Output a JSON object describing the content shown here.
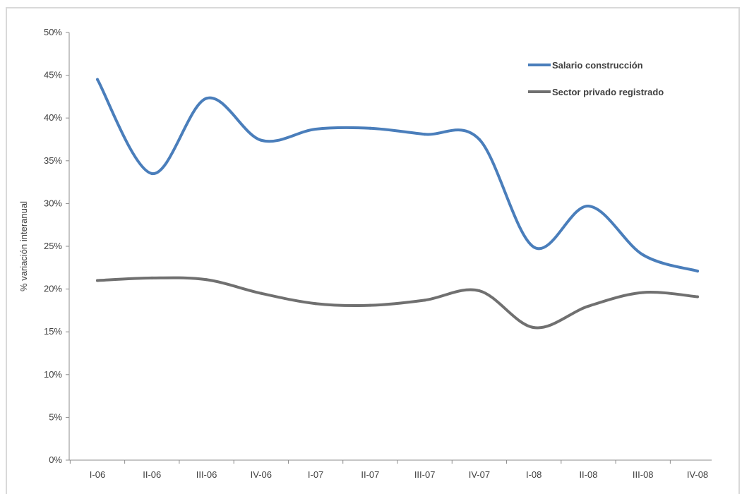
{
  "chart_data": {
    "type": "line",
    "categories": [
      "I-06",
      "II-06",
      "III-06",
      "IV-06",
      "I-07",
      "II-07",
      "III-07",
      "IV-07",
      "I-08",
      "II-08",
      "III-08",
      "IV-08"
    ],
    "series": [
      {
        "name": "Salario construcción",
        "color": "#4a7ebb",
        "values": [
          44.5,
          33.5,
          42.3,
          37.4,
          38.7,
          38.8,
          38.1,
          37.5,
          24.9,
          29.7,
          24.0,
          22.1
        ]
      },
      {
        "name": "Sector privado registrado",
        "color": "#707070",
        "values": [
          21.0,
          21.3,
          21.1,
          19.5,
          18.3,
          18.1,
          18.7,
          19.8,
          15.5,
          18.0,
          19.6,
          19.1
        ]
      }
    ],
    "ylabel": "% variación interanual",
    "xlabel": "",
    "title": "",
    "ylim": [
      0,
      50
    ],
    "ytick_step": 5,
    "ytick_suffix": "%",
    "grid": false,
    "legend_position": "top-right"
  }
}
